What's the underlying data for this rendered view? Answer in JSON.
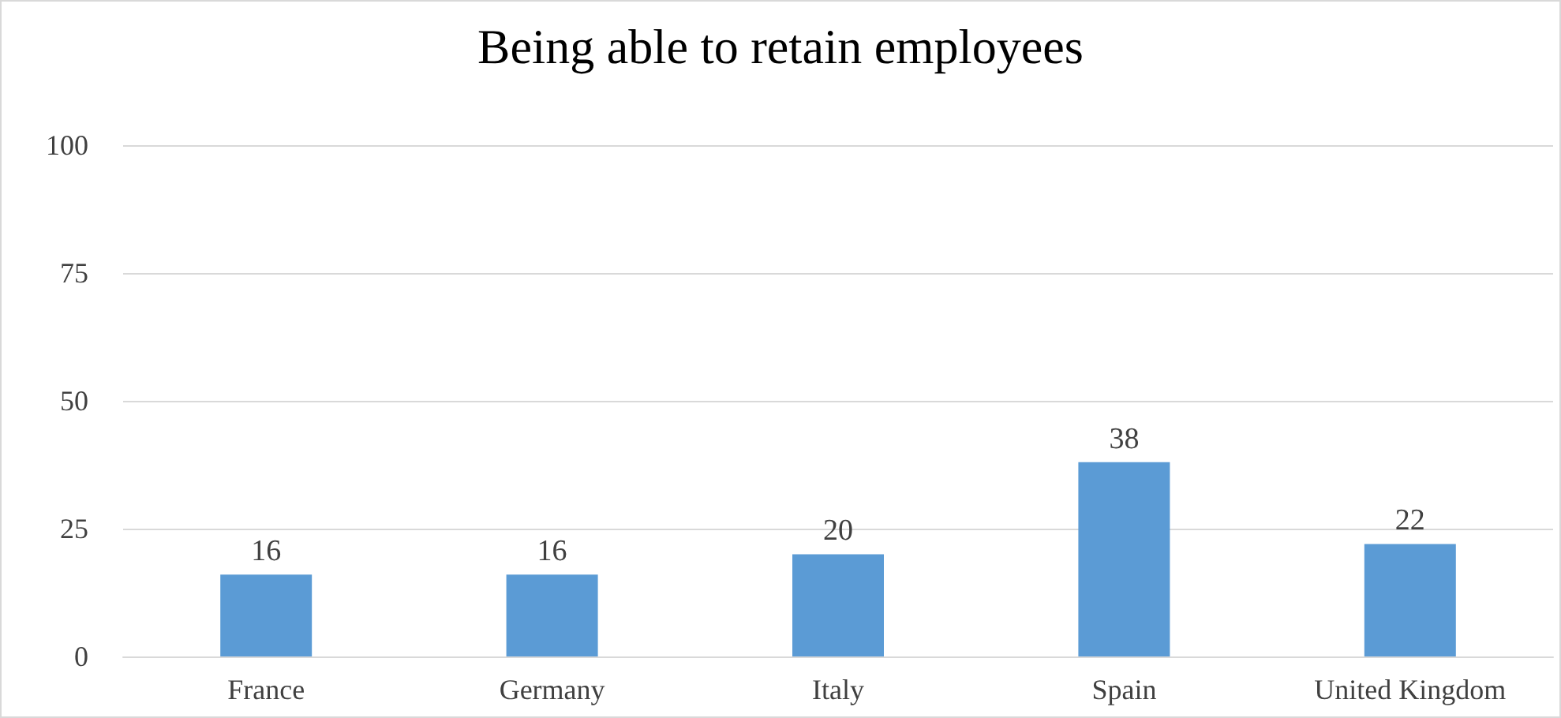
{
  "chart_data": {
    "type": "bar",
    "title": "Being able to retain employees",
    "categories": [
      "France",
      "Germany",
      "Italy",
      "Spain",
      "United Kingdom"
    ],
    "values": [
      16,
      16,
      20,
      38,
      22
    ],
    "color": "#5b9bd5",
    "ylim": [
      0,
      100
    ],
    "yticks": [
      0,
      25,
      50,
      75,
      100
    ],
    "grid": "y",
    "data_labels": true
  }
}
